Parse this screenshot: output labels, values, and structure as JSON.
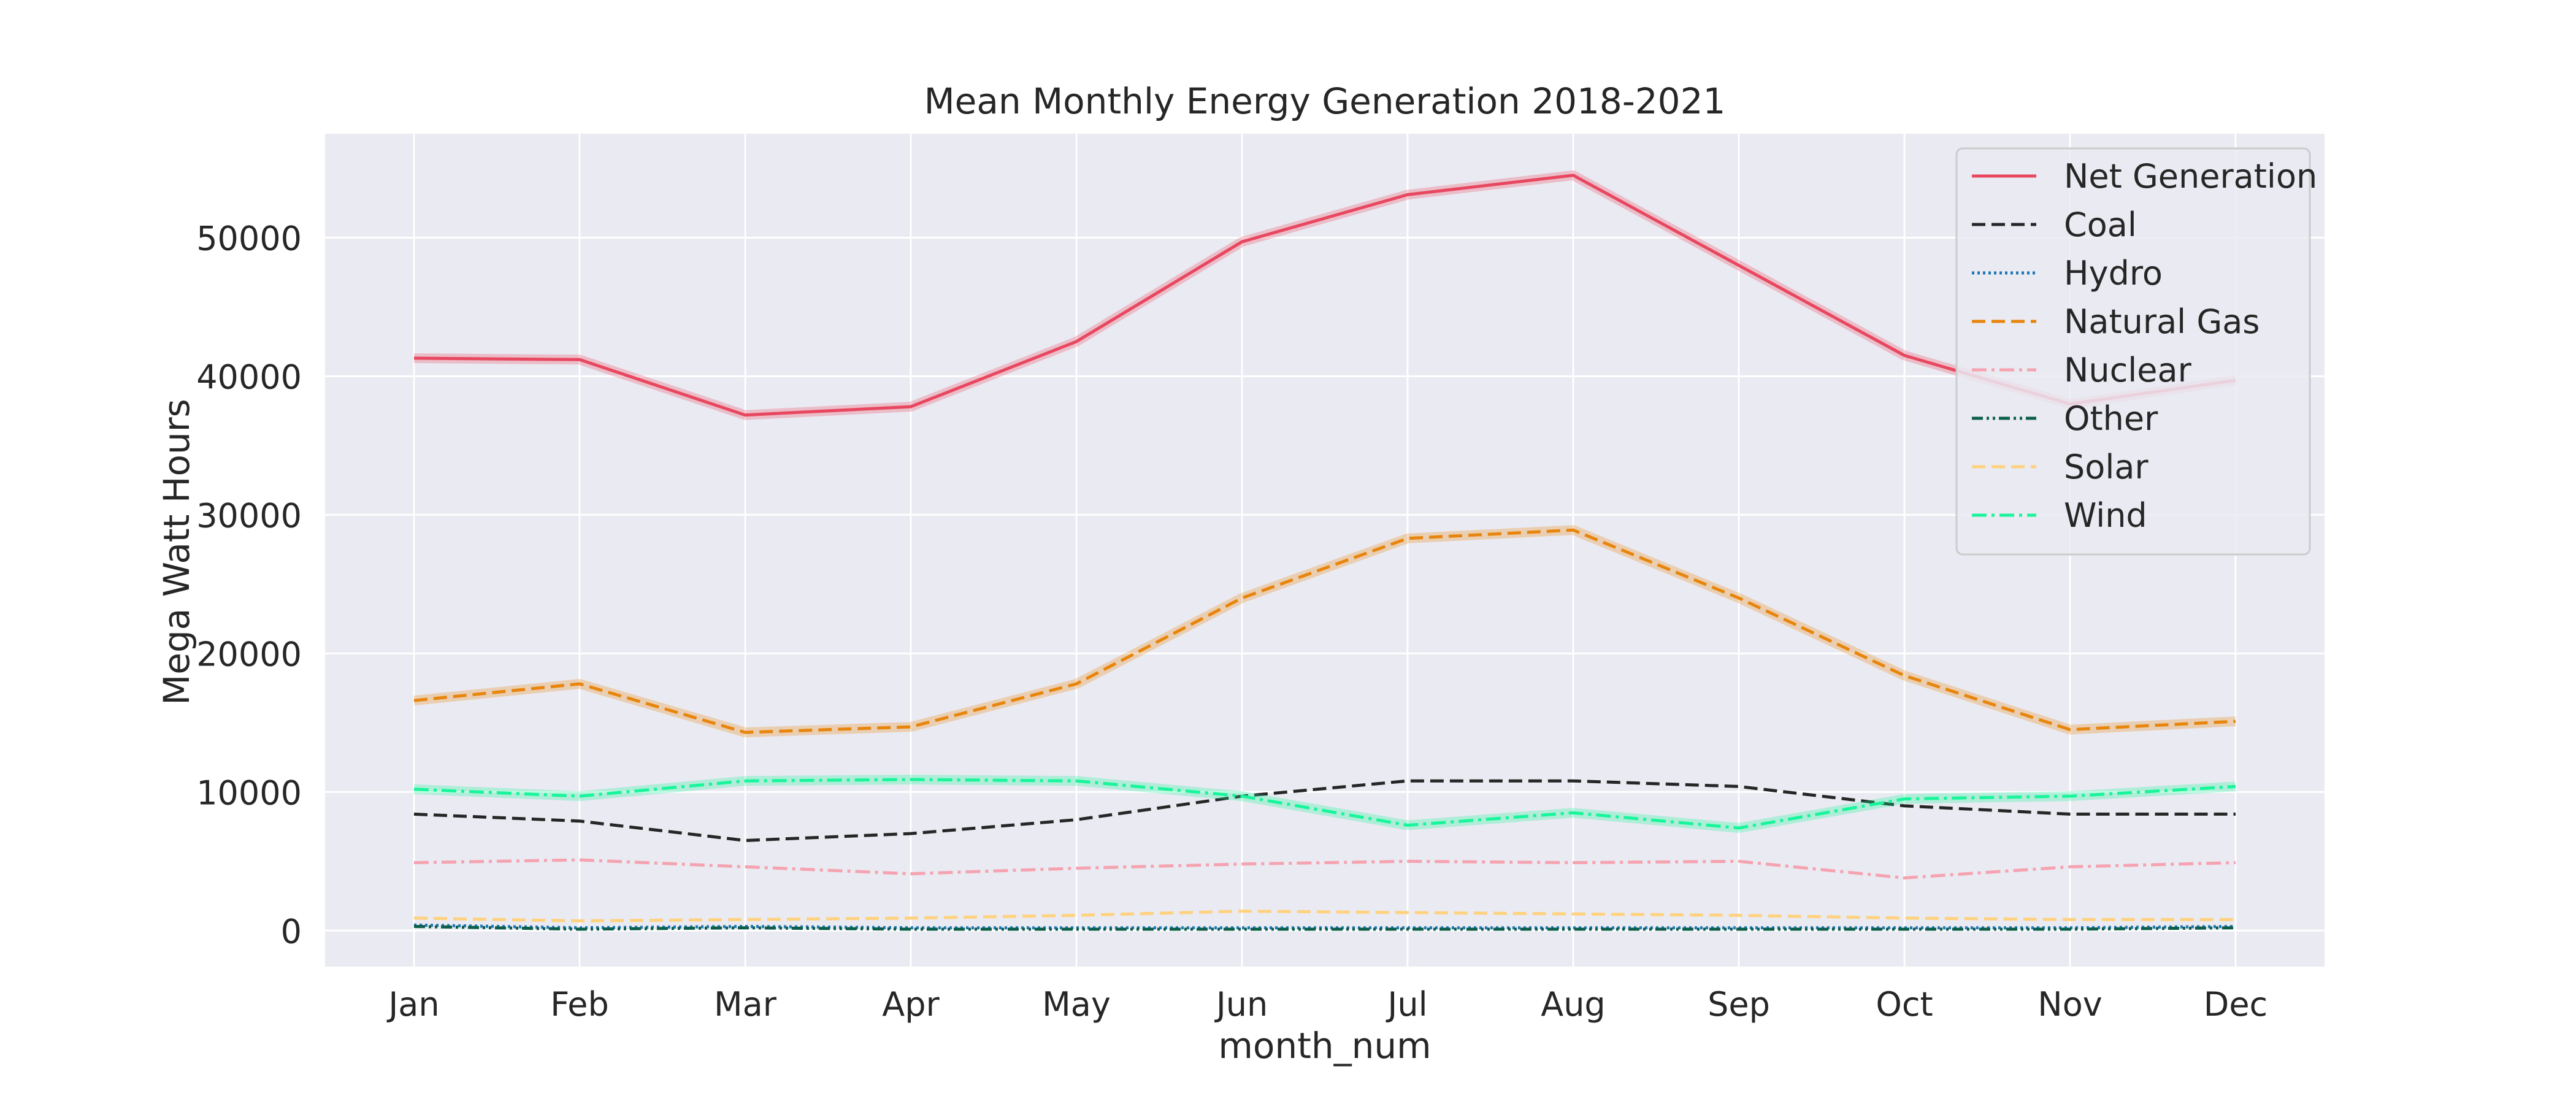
{
  "chart_data": {
    "type": "line",
    "title": "Mean Monthly Energy Generation 2018-2021",
    "xlabel": "month_num",
    "ylabel": "Mega Watt Hours",
    "categories": [
      "Jan",
      "Feb",
      "Mar",
      "Apr",
      "May",
      "Jun",
      "Jul",
      "Aug",
      "Sep",
      "Oct",
      "Nov",
      "Dec"
    ],
    "ylim": [
      -2600,
      57500
    ],
    "yticks": [
      0,
      10000,
      20000,
      30000,
      40000,
      50000
    ],
    "ytick_labels": [
      "0",
      "10000",
      "20000",
      "30000",
      "40000",
      "50000"
    ],
    "grid": true,
    "legend_position": "top-right",
    "series": [
      {
        "name": "Net Generation",
        "color": "#e8475f",
        "dash": "solid",
        "band": true,
        "values": [
          41300,
          41200,
          37200,
          37800,
          42500,
          49700,
          53100,
          54500,
          48000,
          41500,
          38000,
          39700
        ]
      },
      {
        "name": "Coal",
        "color": "#262626",
        "dash": "dashed",
        "band": false,
        "values": [
          8400,
          7900,
          6500,
          7000,
          8000,
          9700,
          10800,
          10800,
          10400,
          9000,
          8400,
          8400
        ]
      },
      {
        "name": "Hydro",
        "color": "#1f77b4",
        "dash": "dotted",
        "band": false,
        "values": [
          400,
          200,
          300,
          200,
          200,
          200,
          200,
          200,
          200,
          200,
          200,
          300
        ]
      },
      {
        "name": "Natural Gas",
        "color": "#e8850c",
        "dash": "dashed",
        "band": true,
        "values": [
          16600,
          17800,
          14300,
          14700,
          17800,
          24000,
          28300,
          28900,
          24000,
          18400,
          14500,
          15100
        ]
      },
      {
        "name": "Nuclear",
        "color": "#f5a3b0",
        "dash": "dashdot",
        "band": false,
        "values": [
          4900,
          5100,
          4600,
          4100,
          4500,
          4800,
          5000,
          4900,
          5000,
          3800,
          4600,
          4900
        ]
      },
      {
        "name": "Other",
        "color": "#0b5e4a",
        "dash": "dashdotdot",
        "band": false,
        "values": [
          300,
          100,
          200,
          100,
          100,
          100,
          100,
          100,
          100,
          100,
          100,
          200
        ]
      },
      {
        "name": "Solar",
        "color": "#ffd27f",
        "dash": "dashed",
        "band": false,
        "values": [
          900,
          700,
          800,
          900,
          1100,
          1400,
          1300,
          1200,
          1100,
          900,
          800,
          800
        ]
      },
      {
        "name": "Wind",
        "color": "#19f59a",
        "dash": "dashdot",
        "band": true,
        "values": [
          10200,
          9700,
          10800,
          10900,
          10800,
          9700,
          7600,
          8500,
          7400,
          9500,
          9700,
          10400
        ]
      }
    ]
  }
}
